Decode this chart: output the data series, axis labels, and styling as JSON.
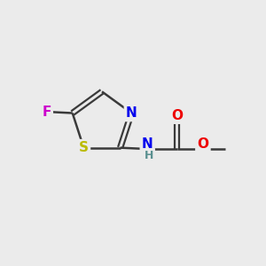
{
  "bg_color": "#EBEBEB",
  "bond_color": "#3a3a3a",
  "atom_colors": {
    "N": "#0000EE",
    "S": "#BBBB00",
    "F": "#CC00CC",
    "O": "#EE0000",
    "C": "#3a3a3a",
    "NH_teal": "#5a9090"
  },
  "figsize": [
    3.0,
    3.0
  ],
  "dpi": 100
}
